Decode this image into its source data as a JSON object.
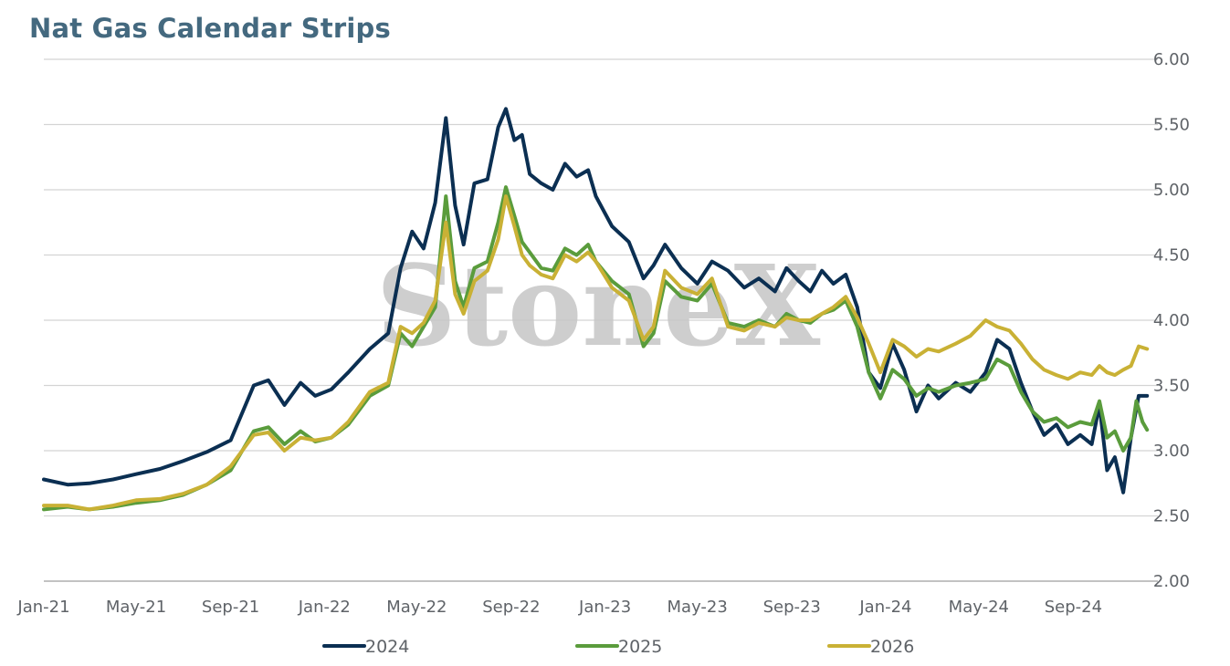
{
  "chart_data": {
    "type": "line",
    "title": "Nat Gas Calendar Strips",
    "ylim": [
      2.0,
      6.0
    ],
    "yticks": [
      "2.00",
      "2.50",
      "3.00",
      "3.50",
      "4.00",
      "4.50",
      "5.00",
      "5.50",
      "6.00"
    ],
    "xticks": [
      "Jan-21",
      "May-21",
      "Sep-21",
      "Jan-22",
      "May-22",
      "Sep-22",
      "Jan-23",
      "May-23",
      "Sep-23",
      "Jan-24",
      "May-24",
      "Sep-24"
    ],
    "grid": true,
    "legend_position": "bottom",
    "watermark": "StoneX",
    "series": [
      {
        "name": "2024",
        "color": "#0b2f52",
        "points": [
          [
            "2021-01-01",
            2.78
          ],
          [
            "2021-02-01",
            2.74
          ],
          [
            "2021-03-01",
            2.75
          ],
          [
            "2021-04-01",
            2.78
          ],
          [
            "2021-05-01",
            2.82
          ],
          [
            "2021-06-01",
            2.86
          ],
          [
            "2021-07-01",
            2.92
          ],
          [
            "2021-08-01",
            2.99
          ],
          [
            "2021-09-01",
            3.08
          ],
          [
            "2021-10-01",
            3.5
          ],
          [
            "2021-10-20",
            3.54
          ],
          [
            "2021-11-10",
            3.35
          ],
          [
            "2021-12-01",
            3.52
          ],
          [
            "2021-12-20",
            3.42
          ],
          [
            "2022-01-10",
            3.47
          ],
          [
            "2022-02-01",
            3.6
          ],
          [
            "2022-03-01",
            3.78
          ],
          [
            "2022-03-25",
            3.9
          ],
          [
            "2022-04-10",
            4.4
          ],
          [
            "2022-04-25",
            4.68
          ],
          [
            "2022-05-10",
            4.55
          ],
          [
            "2022-05-25",
            4.9
          ],
          [
            "2022-06-08",
            5.55
          ],
          [
            "2022-06-20",
            4.88
          ],
          [
            "2022-07-01",
            4.58
          ],
          [
            "2022-07-15",
            5.05
          ],
          [
            "2022-08-01",
            5.08
          ],
          [
            "2022-08-15",
            5.48
          ],
          [
            "2022-08-25",
            5.62
          ],
          [
            "2022-09-05",
            5.38
          ],
          [
            "2022-09-15",
            5.42
          ],
          [
            "2022-09-25",
            5.12
          ],
          [
            "2022-10-10",
            5.05
          ],
          [
            "2022-10-25",
            5.0
          ],
          [
            "2022-11-10",
            5.2
          ],
          [
            "2022-11-25",
            5.1
          ],
          [
            "2022-12-10",
            5.15
          ],
          [
            "2022-12-20",
            4.95
          ],
          [
            "2023-01-10",
            4.72
          ],
          [
            "2023-02-01",
            4.6
          ],
          [
            "2023-02-20",
            4.32
          ],
          [
            "2023-03-05",
            4.42
          ],
          [
            "2023-03-20",
            4.58
          ],
          [
            "2023-04-10",
            4.4
          ],
          [
            "2023-05-01",
            4.28
          ],
          [
            "2023-05-20",
            4.45
          ],
          [
            "2023-06-10",
            4.38
          ],
          [
            "2023-07-01",
            4.25
          ],
          [
            "2023-07-20",
            4.32
          ],
          [
            "2023-08-10",
            4.22
          ],
          [
            "2023-08-25",
            4.4
          ],
          [
            "2023-09-10",
            4.3
          ],
          [
            "2023-09-25",
            4.22
          ],
          [
            "2023-10-10",
            4.38
          ],
          [
            "2023-10-25",
            4.28
          ],
          [
            "2023-11-10",
            4.35
          ],
          [
            "2023-11-25",
            4.1
          ],
          [
            "2023-12-10",
            3.6
          ],
          [
            "2023-12-25",
            3.48
          ],
          [
            "2024-01-10",
            3.82
          ],
          [
            "2024-01-25",
            3.62
          ],
          [
            "2024-02-10",
            3.3
          ],
          [
            "2024-02-25",
            3.5
          ],
          [
            "2024-03-10",
            3.4
          ],
          [
            "2024-04-01",
            3.52
          ],
          [
            "2024-04-20",
            3.45
          ],
          [
            "2024-05-10",
            3.6
          ],
          [
            "2024-05-25",
            3.85
          ],
          [
            "2024-06-10",
            3.78
          ],
          [
            "2024-06-25",
            3.52
          ],
          [
            "2024-07-10",
            3.3
          ],
          [
            "2024-07-25",
            3.12
          ],
          [
            "2024-08-10",
            3.2
          ],
          [
            "2024-08-25",
            3.05
          ],
          [
            "2024-09-10",
            3.12
          ],
          [
            "2024-09-25",
            3.05
          ],
          [
            "2024-10-05",
            3.35
          ],
          [
            "2024-10-15",
            2.85
          ],
          [
            "2024-10-25",
            2.95
          ],
          [
            "2024-11-05",
            2.68
          ],
          [
            "2024-11-15",
            3.1
          ],
          [
            "2024-11-25",
            3.42
          ],
          [
            "2024-12-06",
            3.42
          ]
        ]
      },
      {
        "name": "2025",
        "color": "#5a9c3c",
        "points": [
          [
            "2021-01-01",
            2.55
          ],
          [
            "2021-02-01",
            2.57
          ],
          [
            "2021-03-01",
            2.55
          ],
          [
            "2021-04-01",
            2.57
          ],
          [
            "2021-05-01",
            2.6
          ],
          [
            "2021-06-01",
            2.62
          ],
          [
            "2021-07-01",
            2.66
          ],
          [
            "2021-08-01",
            2.74
          ],
          [
            "2021-09-01",
            2.85
          ],
          [
            "2021-10-01",
            3.15
          ],
          [
            "2021-10-20",
            3.18
          ],
          [
            "2021-11-10",
            3.05
          ],
          [
            "2021-12-01",
            3.15
          ],
          [
            "2021-12-20",
            3.07
          ],
          [
            "2022-01-10",
            3.1
          ],
          [
            "2022-02-01",
            3.2
          ],
          [
            "2022-03-01",
            3.42
          ],
          [
            "2022-03-25",
            3.5
          ],
          [
            "2022-04-10",
            3.9
          ],
          [
            "2022-04-25",
            3.8
          ],
          [
            "2022-05-10",
            3.95
          ],
          [
            "2022-05-25",
            4.1
          ],
          [
            "2022-06-08",
            4.95
          ],
          [
            "2022-06-20",
            4.3
          ],
          [
            "2022-07-01",
            4.1
          ],
          [
            "2022-07-15",
            4.4
          ],
          [
            "2022-08-01",
            4.45
          ],
          [
            "2022-08-15",
            4.75
          ],
          [
            "2022-08-25",
            5.02
          ],
          [
            "2022-09-05",
            4.8
          ],
          [
            "2022-09-15",
            4.6
          ],
          [
            "2022-09-25",
            4.52
          ],
          [
            "2022-10-10",
            4.4
          ],
          [
            "2022-10-25",
            4.38
          ],
          [
            "2022-11-10",
            4.55
          ],
          [
            "2022-11-25",
            4.5
          ],
          [
            "2022-12-10",
            4.58
          ],
          [
            "2022-12-20",
            4.45
          ],
          [
            "2023-01-10",
            4.3
          ],
          [
            "2023-02-01",
            4.2
          ],
          [
            "2023-02-20",
            3.8
          ],
          [
            "2023-03-05",
            3.9
          ],
          [
            "2023-03-20",
            4.3
          ],
          [
            "2023-04-10",
            4.18
          ],
          [
            "2023-05-01",
            4.15
          ],
          [
            "2023-05-20",
            4.28
          ],
          [
            "2023-06-10",
            3.98
          ],
          [
            "2023-07-01",
            3.95
          ],
          [
            "2023-07-20",
            4.0
          ],
          [
            "2023-08-10",
            3.95
          ],
          [
            "2023-08-25",
            4.05
          ],
          [
            "2023-09-10",
            4.0
          ],
          [
            "2023-09-25",
            3.98
          ],
          [
            "2023-10-10",
            4.05
          ],
          [
            "2023-10-25",
            4.08
          ],
          [
            "2023-11-10",
            4.15
          ],
          [
            "2023-11-25",
            3.95
          ],
          [
            "2023-12-10",
            3.6
          ],
          [
            "2023-12-25",
            3.4
          ],
          [
            "2024-01-10",
            3.62
          ],
          [
            "2024-01-25",
            3.55
          ],
          [
            "2024-02-10",
            3.42
          ],
          [
            "2024-02-25",
            3.48
          ],
          [
            "2024-03-10",
            3.45
          ],
          [
            "2024-04-01",
            3.5
          ],
          [
            "2024-04-20",
            3.52
          ],
          [
            "2024-05-10",
            3.55
          ],
          [
            "2024-05-25",
            3.7
          ],
          [
            "2024-06-10",
            3.65
          ],
          [
            "2024-06-25",
            3.45
          ],
          [
            "2024-07-10",
            3.3
          ],
          [
            "2024-07-25",
            3.22
          ],
          [
            "2024-08-10",
            3.25
          ],
          [
            "2024-08-25",
            3.18
          ],
          [
            "2024-09-10",
            3.22
          ],
          [
            "2024-09-25",
            3.2
          ],
          [
            "2024-10-05",
            3.38
          ],
          [
            "2024-10-15",
            3.1
          ],
          [
            "2024-10-25",
            3.15
          ],
          [
            "2024-11-05",
            3.0
          ],
          [
            "2024-11-15",
            3.1
          ],
          [
            "2024-11-22",
            3.38
          ],
          [
            "2024-11-30",
            3.22
          ],
          [
            "2024-12-06",
            3.16
          ]
        ]
      },
      {
        "name": "2026",
        "color": "#c9b135",
        "points": [
          [
            "2021-01-01",
            2.58
          ],
          [
            "2021-02-01",
            2.58
          ],
          [
            "2021-03-01",
            2.55
          ],
          [
            "2021-04-01",
            2.58
          ],
          [
            "2021-05-01",
            2.62
          ],
          [
            "2021-06-01",
            2.63
          ],
          [
            "2021-07-01",
            2.67
          ],
          [
            "2021-08-01",
            2.74
          ],
          [
            "2021-09-01",
            2.88
          ],
          [
            "2021-10-01",
            3.12
          ],
          [
            "2021-10-20",
            3.14
          ],
          [
            "2021-11-10",
            3.0
          ],
          [
            "2021-12-01",
            3.1
          ],
          [
            "2021-12-20",
            3.08
          ],
          [
            "2022-01-10",
            3.1
          ],
          [
            "2022-02-01",
            3.22
          ],
          [
            "2022-03-01",
            3.45
          ],
          [
            "2022-03-25",
            3.52
          ],
          [
            "2022-04-10",
            3.95
          ],
          [
            "2022-04-25",
            3.9
          ],
          [
            "2022-05-10",
            3.98
          ],
          [
            "2022-05-25",
            4.15
          ],
          [
            "2022-06-08",
            4.75
          ],
          [
            "2022-06-20",
            4.2
          ],
          [
            "2022-07-01",
            4.05
          ],
          [
            "2022-07-15",
            4.3
          ],
          [
            "2022-08-01",
            4.38
          ],
          [
            "2022-08-15",
            4.62
          ],
          [
            "2022-08-25",
            4.95
          ],
          [
            "2022-09-05",
            4.72
          ],
          [
            "2022-09-15",
            4.5
          ],
          [
            "2022-09-25",
            4.42
          ],
          [
            "2022-10-10",
            4.35
          ],
          [
            "2022-10-25",
            4.32
          ],
          [
            "2022-11-10",
            4.5
          ],
          [
            "2022-11-25",
            4.45
          ],
          [
            "2022-12-10",
            4.52
          ],
          [
            "2022-12-20",
            4.45
          ],
          [
            "2023-01-10",
            4.25
          ],
          [
            "2023-02-01",
            4.15
          ],
          [
            "2023-02-20",
            3.85
          ],
          [
            "2023-03-05",
            3.95
          ],
          [
            "2023-03-20",
            4.38
          ],
          [
            "2023-04-10",
            4.25
          ],
          [
            "2023-05-01",
            4.2
          ],
          [
            "2023-05-20",
            4.32
          ],
          [
            "2023-06-10",
            3.95
          ],
          [
            "2023-07-01",
            3.92
          ],
          [
            "2023-07-20",
            3.98
          ],
          [
            "2023-08-10",
            3.95
          ],
          [
            "2023-08-25",
            4.02
          ],
          [
            "2023-09-10",
            4.0
          ],
          [
            "2023-09-25",
            4.0
          ],
          [
            "2023-10-10",
            4.05
          ],
          [
            "2023-10-25",
            4.1
          ],
          [
            "2023-11-10",
            4.18
          ],
          [
            "2023-11-25",
            4.02
          ],
          [
            "2023-12-10",
            3.82
          ],
          [
            "2023-12-25",
            3.6
          ],
          [
            "2024-01-10",
            3.85
          ],
          [
            "2024-01-25",
            3.8
          ],
          [
            "2024-02-10",
            3.72
          ],
          [
            "2024-02-25",
            3.78
          ],
          [
            "2024-03-10",
            3.76
          ],
          [
            "2024-04-01",
            3.82
          ],
          [
            "2024-04-20",
            3.88
          ],
          [
            "2024-05-10",
            4.0
          ],
          [
            "2024-05-25",
            3.95
          ],
          [
            "2024-06-10",
            3.92
          ],
          [
            "2024-06-25",
            3.82
          ],
          [
            "2024-07-10",
            3.7
          ],
          [
            "2024-07-25",
            3.62
          ],
          [
            "2024-08-10",
            3.58
          ],
          [
            "2024-08-25",
            3.55
          ],
          [
            "2024-09-10",
            3.6
          ],
          [
            "2024-09-25",
            3.58
          ],
          [
            "2024-10-05",
            3.65
          ],
          [
            "2024-10-15",
            3.6
          ],
          [
            "2024-10-25",
            3.58
          ],
          [
            "2024-11-05",
            3.62
          ],
          [
            "2024-11-15",
            3.65
          ],
          [
            "2024-11-25",
            3.8
          ],
          [
            "2024-12-06",
            3.78
          ]
        ]
      }
    ]
  }
}
